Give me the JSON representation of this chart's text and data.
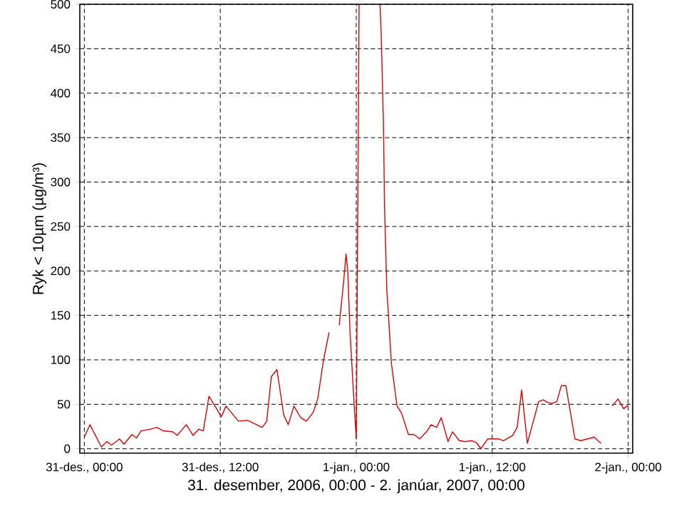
{
  "chart_data": {
    "type": "line",
    "xlabel": "31. desember, 2006, 00:00 - 2. janúar, 2007, 00:00",
    "ylabel": "Ryk < 10µm (µg/m³)",
    "x": [
      "2006-12-31T00:00",
      "2006-12-31T00:30",
      "2006-12-31T01:30",
      "2006-12-31T02:00",
      "2006-12-31T02:24",
      "2006-12-31T03:06",
      "2006-12-31T03:30",
      "2006-12-31T04:12",
      "2006-12-31T04:36",
      "2006-12-31T05:00",
      "2006-12-31T05:48",
      "2006-12-31T06:24",
      "2006-12-31T07:00",
      "2006-12-31T07:48",
      "2006-12-31T08:12",
      "2006-12-31T09:00",
      "2006-12-31T09:36",
      "2006-12-31T10:06",
      "2006-12-31T10:30",
      "2006-12-31T11:00",
      "2006-12-31T12:06",
      "2006-12-31T12:30",
      "2006-12-31T13:36",
      "2006-12-31T14:24",
      "2006-12-31T15:42",
      "2006-12-31T16:06",
      "2006-12-31T16:30",
      "2006-12-31T17:00",
      "2006-12-31T17:36",
      "2006-12-31T18:00",
      "2006-12-31T18:30",
      "2006-12-31T19:06",
      "2006-12-31T19:36",
      "2006-12-31T20:12",
      "2006-12-31T20:36",
      "2006-12-31T21:06",
      "2006-12-31T21:36",
      "2006-12-31T22:00",
      "2006-12-31T22:30",
      "2006-12-31T22:54",
      "2006-12-31T23:06",
      "2006-12-31T23:15",
      "2006-12-31T23:27",
      "2006-12-31T23:48",
      "2007-01-01T00:00",
      "2007-01-01T00:03",
      "2007-01-01T00:15",
      "2007-01-01T01:12",
      "2007-01-01T02:06",
      "2007-01-01T02:12",
      "2007-01-01T02:24",
      "2007-01-01T02:30",
      "2007-01-01T02:42",
      "2007-01-01T03:06",
      "2007-01-01T03:36",
      "2007-01-01T04:00",
      "2007-01-01T04:36",
      "2007-01-01T05:06",
      "2007-01-01T05:36",
      "2007-01-01T06:12",
      "2007-01-01T06:36",
      "2007-01-01T07:06",
      "2007-01-01T07:30",
      "2007-01-01T08:06",
      "2007-01-01T08:30",
      "2007-01-01T09:06",
      "2007-01-01T09:36",
      "2007-01-01T10:12",
      "2007-01-01T10:36",
      "2007-01-01T11:00",
      "2007-01-01T11:36",
      "2007-01-01T12:36",
      "2007-01-01T13:00",
      "2007-01-01T13:48",
      "2007-01-01T14:12",
      "2007-01-01T14:36",
      "2007-01-01T15:06",
      "2007-01-01T16:06",
      "2007-01-01T16:30",
      "2007-01-01T16:54",
      "2007-01-01T17:18",
      "2007-01-01T17:42",
      "2007-01-01T18:06",
      "2007-01-01T18:30",
      "2007-01-01T19:18",
      "2007-01-01T19:48",
      "2007-01-01T20:24",
      "2007-01-01T21:00",
      "2007-01-01T21:36",
      "2007-01-01T22:06",
      "2007-01-01T22:36",
      "2007-01-01T23:06",
      "2007-01-01T23:36",
      "2007-01-02T00:00"
    ],
    "series": [
      {
        "color": "#dd0000",
        "values": [
          13,
          27,
          2,
          8,
          4,
          11,
          5,
          16,
          12,
          20,
          22,
          24,
          20,
          19,
          15,
          27,
          15,
          22,
          20,
          59,
          36,
          48,
          31,
          32,
          24,
          31,
          81,
          89,
          38,
          27,
          48,
          35,
          31,
          41,
          56,
          99,
          131,
          null,
          139,
          190,
          219,
          200,
          131,
          53,
          11,
          107,
          500,
          null,
          500,
          467,
          366,
          270,
          179,
          96,
          48,
          40,
          16,
          16,
          11,
          19,
          27,
          24,
          35,
          8,
          19,
          9,
          8,
          9,
          7,
          0,
          11,
          11,
          9,
          15,
          24,
          66,
          6,
          53,
          55,
          52,
          51,
          53,
          71,
          71,
          11,
          9,
          11,
          13,
          6,
          null,
          48,
          56,
          45,
          49
        ]
      }
    ],
    "xlim": [
      "2006-12-30T23:36",
      "2007-01-02T00:24"
    ],
    "ylim": [
      -5,
      500
    ],
    "xticks": [
      {
        "value": "2006-12-31T00:00",
        "label": "31-des., 00:00"
      },
      {
        "value": "2006-12-31T12:00",
        "label": "31-des., 12:00"
      },
      {
        "value": "2007-01-01T00:00",
        "label": "1-jan., 00:00"
      },
      {
        "value": "2007-01-01T12:00",
        "label": "1-jan., 12:00"
      },
      {
        "value": "2007-01-02T00:00",
        "label": "2-jan., 00:00"
      }
    ],
    "yticks": [
      0,
      50,
      100,
      150,
      200,
      250,
      300,
      350,
      400,
      450,
      500
    ],
    "grid": true,
    "marker": "none",
    "line_style": "solid"
  }
}
